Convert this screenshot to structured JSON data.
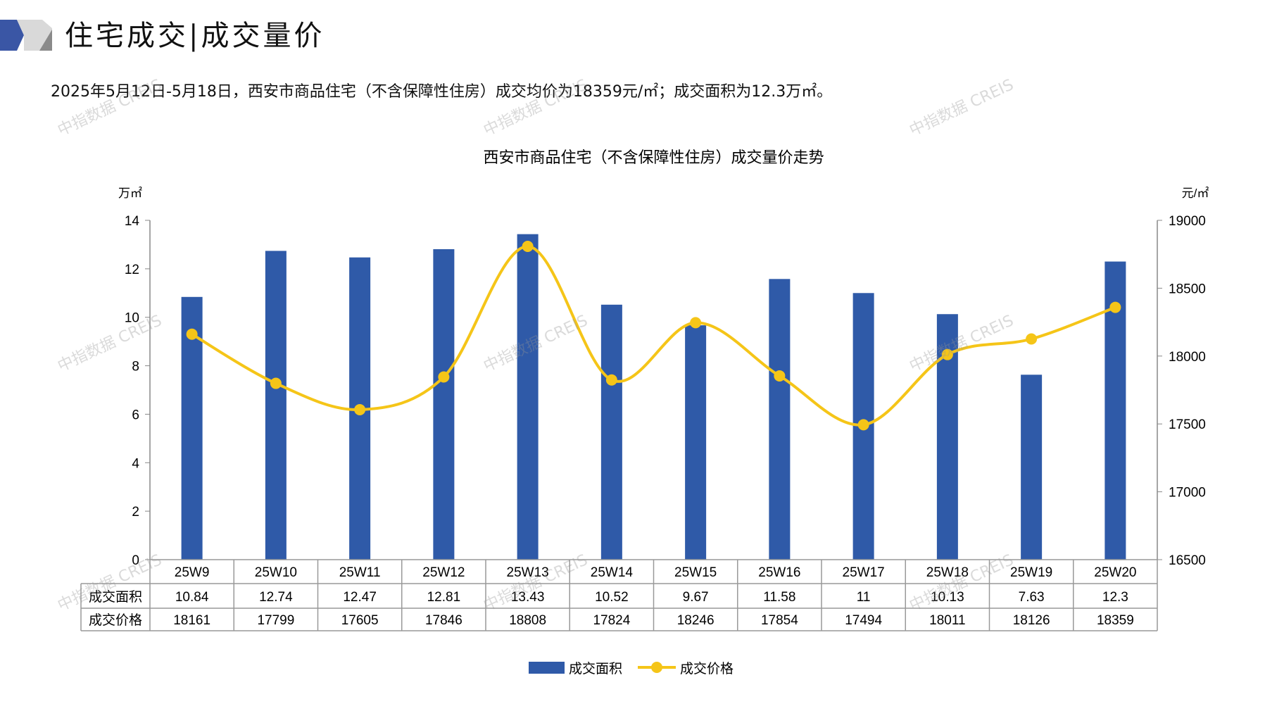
{
  "header": {
    "title": "住宅成交|成交量价",
    "summary": "2025年5月12日-5月18日，西安市商品住宅（不含保障性住房）成交均价为18359元/㎡；成交面积为12.3万㎡。"
  },
  "watermark": "中指数据 CREIS",
  "colors": {
    "bar": "#2F5AA8",
    "line": "#F5C518",
    "accent": "#3A56A5"
  },
  "chart_data": {
    "type": "bar+line",
    "title": "西安市商品住宅（不含保障性住房）成交量价走势",
    "categories": [
      "25W9",
      "25W10",
      "25W11",
      "25W12",
      "25W13",
      "25W14",
      "25W15",
      "25W16",
      "25W17",
      "25W18",
      "25W19",
      "25W20"
    ],
    "series": [
      {
        "name": "成交面积",
        "type": "bar",
        "axis": "left",
        "values": [
          10.84,
          12.74,
          12.47,
          12.81,
          13.43,
          10.52,
          9.67,
          11.58,
          11,
          10.13,
          7.63,
          12.3
        ],
        "labels": [
          "10.84",
          "12.74",
          "12.47",
          "12.81",
          "13.43",
          "10.52",
          "9.67",
          "11.58",
          "11",
          "10.13",
          "7.63",
          "12.3"
        ]
      },
      {
        "name": "成交价格",
        "type": "line",
        "axis": "right",
        "values": [
          18161,
          17799,
          17605,
          17846,
          18808,
          17824,
          18246,
          17854,
          17494,
          18011,
          18126,
          18359
        ],
        "labels": [
          "18161",
          "17799",
          "17605",
          "17846",
          "18808",
          "17824",
          "18246",
          "17854",
          "17494",
          "18011",
          "18126",
          "18359"
        ]
      }
    ],
    "y_left": {
      "unit": "万㎡",
      "range": [
        0,
        14
      ],
      "ticks": [
        "0",
        "2",
        "4",
        "6",
        "8",
        "10",
        "12",
        "14"
      ]
    },
    "y_right": {
      "unit": "元/㎡",
      "range": [
        16500,
        19000
      ],
      "ticks": [
        "16500",
        "17000",
        "17500",
        "18000",
        "18500",
        "19000"
      ]
    },
    "legend": {
      "placement": "bottom"
    },
    "grid": false
  }
}
